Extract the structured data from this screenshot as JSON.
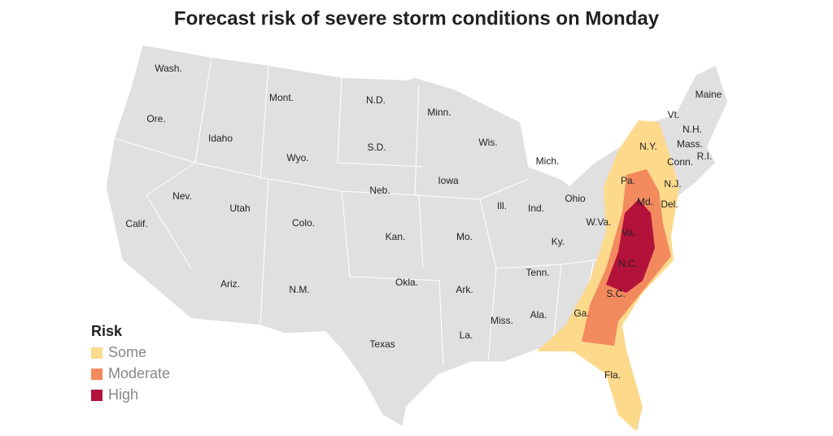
{
  "title": "Forecast risk of severe storm conditions on Monday",
  "legend": {
    "title": "Risk",
    "items": [
      {
        "label": "Some",
        "color": "#fdd98c"
      },
      {
        "label": "Moderate",
        "color": "#f28a5e"
      },
      {
        "label": "High",
        "color": "#b3123b"
      }
    ]
  },
  "states": [
    "Wash.",
    "Mont.",
    "N.D.",
    "Minn.",
    "Maine",
    "Vt.",
    "N.H.",
    "Mass.",
    "R.I.",
    "Conn.",
    "N.Y.",
    "Ore.",
    "Idaho",
    "Wyo.",
    "S.D.",
    "Wis.",
    "Mich.",
    "Iowa",
    "Nev.",
    "Utah",
    "Neb.",
    "Ill.",
    "Ind.",
    "Ohio",
    "Pa.",
    "N.J.",
    "Md.",
    "Del.",
    "Calif.",
    "Colo.",
    "Kan.",
    "Mo.",
    "W.Va.",
    "Va.",
    "Ky.",
    "Ariz.",
    "N.M.",
    "Okla.",
    "Ark.",
    "Tenn.",
    "N.C.",
    "S.C.",
    "Miss.",
    "Ala.",
    "Ga.",
    "La.",
    "Texas",
    "Fla."
  ]
}
